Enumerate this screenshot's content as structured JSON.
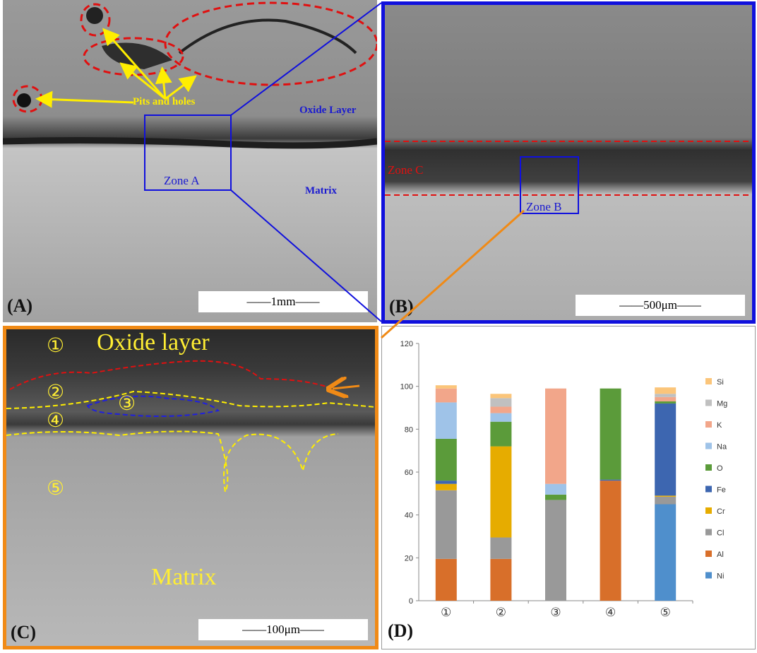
{
  "panel_a": {
    "label": "(A)",
    "annotations": {
      "pits": "Pits and holes",
      "oxide": "Oxide Layer",
      "zone": "Zone A",
      "matrix": "Matrix"
    },
    "scale": "——1mm——"
  },
  "panel_b": {
    "label": "(B)",
    "annotations": {
      "zone_c": "Zone C",
      "zone_b": "Zone B"
    },
    "scale": "——500μm——"
  },
  "panel_c": {
    "label": "(C)",
    "annotations": {
      "oxide": "Oxide layer",
      "matrix": "Matrix"
    },
    "points": [
      "①",
      "②",
      "③",
      "④",
      "⑤"
    ],
    "scale": "——100μm——"
  },
  "panel_d": {
    "label": "(D)"
  },
  "chart_data": {
    "type": "bar",
    "stacked": true,
    "categories": [
      "①",
      "②",
      "③",
      "④",
      "⑤"
    ],
    "ylim": [
      0,
      120
    ],
    "yticks": [
      "0",
      "20",
      "40",
      "60",
      "80",
      "100",
      "120"
    ],
    "legend_position": "right",
    "series": [
      {
        "name": "Ni",
        "color": "#4f8fcc",
        "values": [
          0,
          0,
          0,
          0,
          45
        ]
      },
      {
        "name": "Al",
        "color": "#d86f2a",
        "values": [
          19.5,
          19.5,
          0,
          56,
          0
        ]
      },
      {
        "name": "Cl",
        "color": "#999999",
        "values": [
          32,
          10,
          47,
          0,
          3.5
        ]
      },
      {
        "name": "Cr",
        "color": "#e6ac00",
        "values": [
          3,
          42.5,
          0,
          0,
          0.5
        ]
      },
      {
        "name": "Fe",
        "color": "#3d66b0",
        "values": [
          1.5,
          0,
          0,
          0.5,
          43
        ]
      },
      {
        "name": "O",
        "color": "#5b9b3a",
        "values": [
          19.5,
          11.5,
          2.5,
          42.5,
          1
        ]
      },
      {
        "name": "Na",
        "color": "#9fc3e8",
        "values": [
          17,
          4,
          5,
          0,
          0
        ]
      },
      {
        "name": "K",
        "color": "#f2a68a",
        "values": [
          6.5,
          3,
          44.5,
          0,
          2
        ]
      },
      {
        "name": "Mg",
        "color": "#c0c0c0",
        "values": [
          0,
          4,
          0,
          0,
          1.5
        ]
      },
      {
        "name": "Si",
        "color": "#fbc57a",
        "values": [
          1.5,
          2,
          0,
          0,
          3
        ]
      }
    ]
  }
}
